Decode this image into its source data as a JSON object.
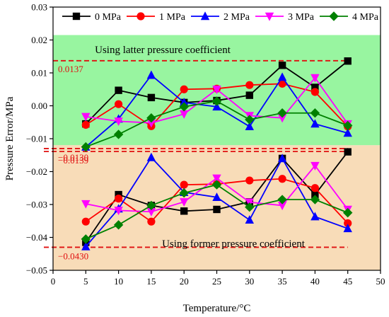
{
  "chart_data": {
    "type": "line",
    "xlabel": "Temperature/°C",
    "ylabel": "Pressure Error/MPa",
    "xlim": [
      0,
      50
    ],
    "ylim": [
      -0.05,
      0.03
    ],
    "x_ticks": [
      0,
      5,
      10,
      15,
      20,
      25,
      30,
      35,
      40,
      45,
      50
    ],
    "y_ticks": [
      -0.05,
      -0.04,
      -0.03,
      -0.02,
      -0.01,
      0.0,
      0.01,
      0.02,
      0.03
    ],
    "x_tick_labels": [
      "0",
      "5",
      "10",
      "15",
      "20",
      "25",
      "30",
      "35",
      "40",
      "45",
      "50"
    ],
    "y_tick_labels": [
      "−0.05",
      "−0.04",
      "−0.03",
      "−0.02",
      "−0.01",
      "0.00",
      "0.01",
      "0.02",
      "0.03"
    ],
    "grid": false,
    "legend_position": "top",
    "x": [
      5,
      10,
      15,
      20,
      25,
      30,
      35,
      40,
      45
    ],
    "regions": [
      {
        "label": "Using latter pressure coefficient",
        "y_range": [
          -0.012,
          0.0215
        ],
        "color": "#98f5a0"
      },
      {
        "label": "Using former pressure coefficient",
        "y_range": [
          -0.05,
          -0.012
        ],
        "color": "#f8dcb8"
      }
    ],
    "reference_lines": [
      {
        "value": 0.0137,
        "label": "0.0137"
      },
      {
        "value": -0.013,
        "label": "−0.0130"
      },
      {
        "value": -0.0139,
        "label": "−0.0139"
      },
      {
        "value": -0.043,
        "label": "−0.0430"
      }
    ],
    "series": [
      {
        "name": "0 MPa",
        "color": "#000000",
        "marker": "square",
        "group": "latter",
        "values": [
          -0.0055,
          0.0047,
          0.0025,
          0.001,
          0.0016,
          0.0032,
          0.0123,
          0.0056,
          0.0136
        ]
      },
      {
        "name": "1 MPa",
        "color": "#ff0000",
        "marker": "circle",
        "group": "latter",
        "values": [
          -0.0058,
          0.0005,
          -0.0062,
          0.005,
          0.0052,
          0.0063,
          0.0067,
          0.0042,
          -0.0063
        ]
      },
      {
        "name": "2 MPa",
        "color": "#0000ff",
        "marker": "triangle-up",
        "group": "latter",
        "values": [
          -0.0125,
          -0.004,
          0.0093,
          0.001,
          -0.0003,
          -0.0063,
          0.0087,
          -0.0055,
          -0.0083
        ]
      },
      {
        "name": "3 MPa",
        "color": "#ff00ff",
        "marker": "triangle-down",
        "group": "latter",
        "values": [
          -0.0033,
          -0.0047,
          -0.0052,
          -0.0025,
          0.005,
          -0.003,
          -0.0037,
          0.0085,
          -0.0055
        ]
      },
      {
        "name": "4 MPa",
        "color": "#008000",
        "marker": "diamond",
        "group": "latter",
        "values": [
          -0.0125,
          -0.0087,
          -0.0037,
          -0.0003,
          0.0014,
          -0.0042,
          -0.0022,
          -0.0022,
          -0.006
        ]
      },
      {
        "name": "0 MPa",
        "color": "#000000",
        "marker": "square",
        "group": "former",
        "values": [
          -0.0415,
          -0.027,
          -0.0303,
          -0.032,
          -0.0315,
          -0.0292,
          -0.016,
          -0.027,
          -0.014
        ]
      },
      {
        "name": "1 MPa",
        "color": "#ff0000",
        "marker": "circle",
        "group": "former",
        "values": [
          -0.0352,
          -0.0282,
          -0.0352,
          -0.024,
          -0.0238,
          -0.0227,
          -0.0222,
          -0.025,
          -0.0357
        ]
      },
      {
        "name": "2 MPa",
        "color": "#0000ff",
        "marker": "triangle-up",
        "group": "former",
        "values": [
          -0.0428,
          -0.0313,
          -0.0157,
          -0.0263,
          -0.0278,
          -0.0347,
          -0.016,
          -0.0337,
          -0.0373
        ]
      },
      {
        "name": "3 MPa",
        "color": "#ff00ff",
        "marker": "triangle-down",
        "group": "former",
        "values": [
          -0.0298,
          -0.0318,
          -0.0322,
          -0.0292,
          -0.022,
          -0.0293,
          -0.0303,
          -0.0182,
          -0.0315
        ]
      },
      {
        "name": "4 MPa",
        "color": "#008000",
        "marker": "diamond",
        "group": "former",
        "values": [
          -0.0405,
          -0.0362,
          -0.0303,
          -0.0265,
          -0.024,
          -0.0308,
          -0.0285,
          -0.0285,
          -0.0325
        ]
      }
    ]
  }
}
